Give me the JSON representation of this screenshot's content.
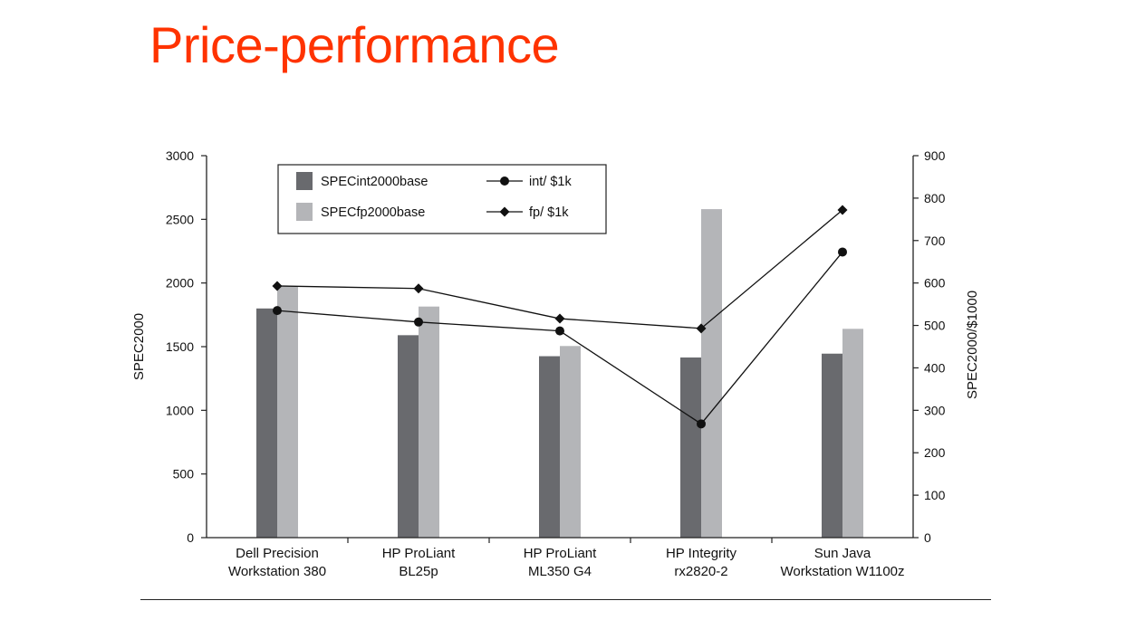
{
  "slide": {
    "title": "Price-performance"
  },
  "chart_data": {
    "type": "bar",
    "title": "",
    "categories": [
      [
        "Dell Precision",
        "Workstation 380"
      ],
      [
        "HP ProLiant",
        "BL25p"
      ],
      [
        "HP ProLiant",
        "ML350 G4"
      ],
      [
        "HP Integrity",
        "rx2820-2"
      ],
      [
        "Sun Java",
        "Workstation W1100z"
      ]
    ],
    "ylabel": "SPEC2000",
    "y2label": "SPEC2000/$1000",
    "ylim": [
      0,
      3000
    ],
    "y2lim": [
      0,
      900
    ],
    "yticks": [
      0,
      500,
      1000,
      1500,
      2000,
      2500,
      3000
    ],
    "y2ticks": [
      0,
      100,
      200,
      300,
      400,
      500,
      600,
      700,
      800,
      900
    ],
    "grid": false,
    "legend_position": "top-left",
    "series": [
      {
        "name": "SPECint2000base",
        "kind": "bar",
        "axis": "left",
        "color": "#696a6e",
        "values": [
          1800,
          1590,
          1425,
          1415,
          1445
        ]
      },
      {
        "name": "SPECfp2000base",
        "kind": "bar",
        "axis": "left",
        "color": "#b4b5b8",
        "values": [
          1975,
          1815,
          1505,
          2580,
          1640
        ]
      },
      {
        "name": "int/ $1k",
        "kind": "line",
        "marker": "circle",
        "axis": "right",
        "color": "#111111",
        "values": [
          535,
          508,
          487,
          268,
          673
        ]
      },
      {
        "name": "fp/ $1k",
        "kind": "line",
        "marker": "diamond",
        "axis": "right",
        "color": "#111111",
        "values": [
          593,
          587,
          516,
          493,
          772
        ]
      }
    ]
  }
}
